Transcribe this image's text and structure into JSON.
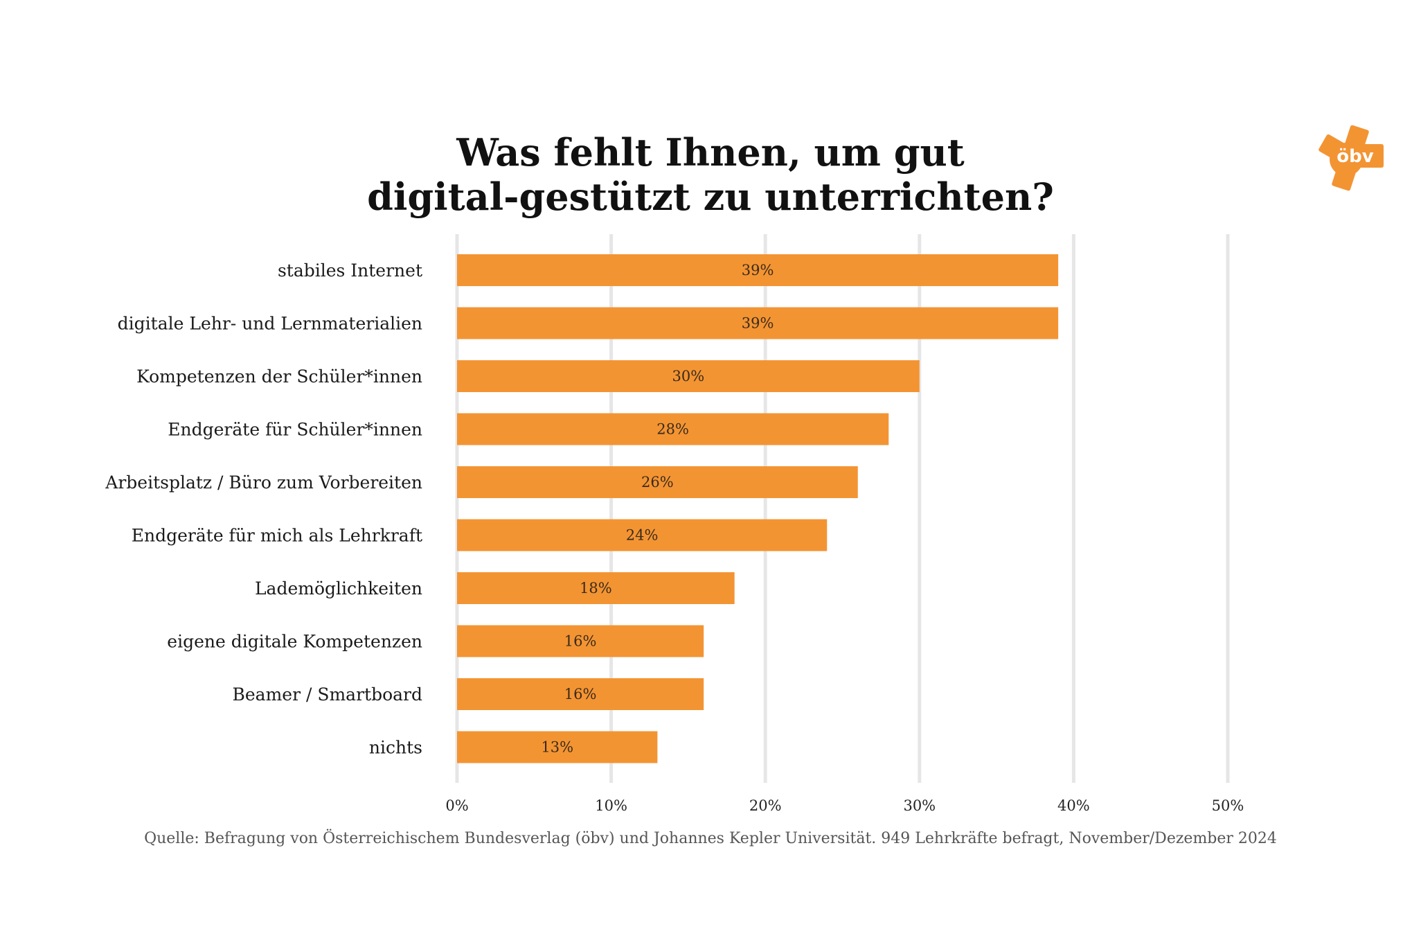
{
  "title_line1": "Was fehlt Ihnen, um gut",
  "title_line2": "digital-gestützt zu unterrichten?",
  "logo": {
    "text": "öbv",
    "icon": "obv-star-logo-icon",
    "color": "#F39433"
  },
  "source": "Quelle: Befragung von Österreichischem Bundesverlag (öbv) und Johannes Kepler Universität. 949 Lehrkräfte befragt, November/Dezember 2024",
  "colors": {
    "bar": "#F39433",
    "grid": "#E6E6E6"
  },
  "chart_data": {
    "type": "bar",
    "orientation": "horizontal",
    "categories": [
      "stabiles Internet",
      "digitale Lehr- und Lernmaterialien",
      "Kompetenzen der Schüler*innen",
      "Endgeräte für Schüler*innen",
      "Arbeitsplatz / Büro zum Vorbereiten",
      "Endgeräte für mich als Lehrkraft",
      "Lademöglichkeiten",
      "eigene digitale Kompetenzen",
      "Beamer / Smartboard",
      "nichts"
    ],
    "values": [
      39,
      39,
      30,
      28,
      26,
      24,
      18,
      16,
      16,
      13
    ],
    "value_labels": [
      "39%",
      "39%",
      "30%",
      "28%",
      "26%",
      "24%",
      "18%",
      "16%",
      "16%",
      "13%"
    ],
    "xlim": [
      0,
      50
    ],
    "xticks": [
      0,
      10,
      20,
      30,
      40,
      50
    ],
    "xtick_labels": [
      "0%",
      "10%",
      "20%",
      "30%",
      "40%",
      "50%"
    ],
    "grid": true
  }
}
